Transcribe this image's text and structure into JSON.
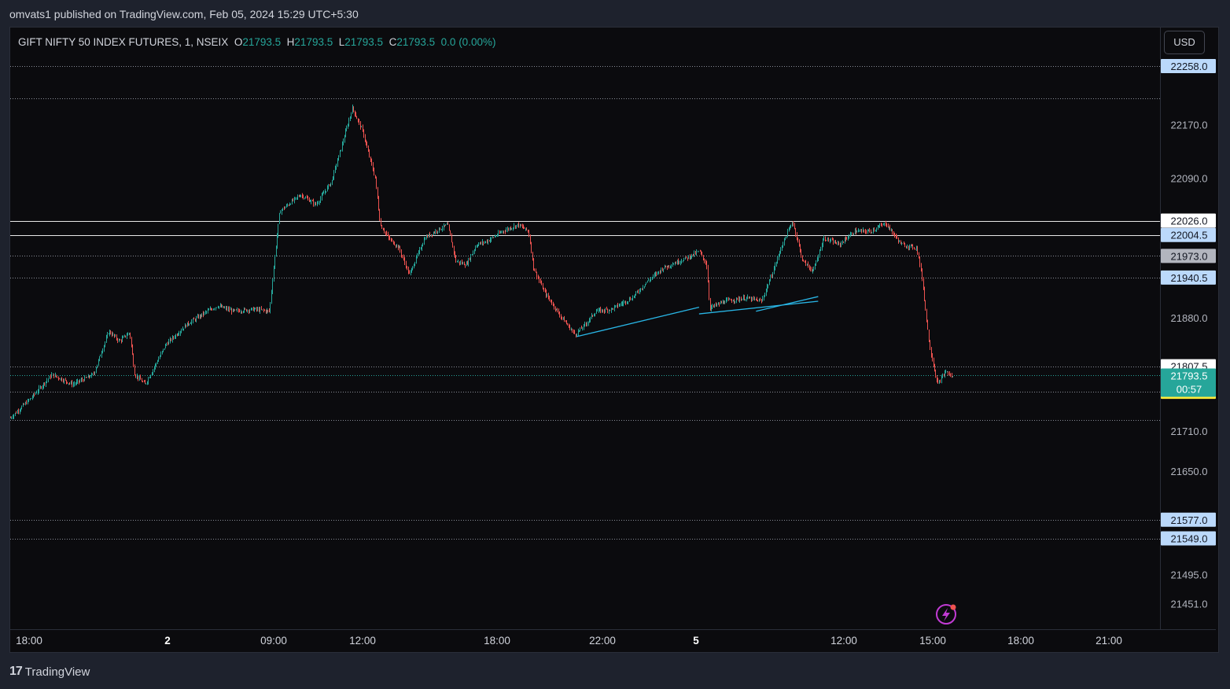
{
  "publish_line": "omvats1 published on TradingView.com, Feb 05, 2024 15:29 UTC+5:30",
  "legend": {
    "symbol": "GIFT NIFTY 50 INDEX FUTURES, 1, NSEIX",
    "o_label": "O",
    "o": "21793.5",
    "h_label": "H",
    "h": "21793.5",
    "l_label": "L",
    "l": "21793.5",
    "c_label": "C",
    "c": "21793.5",
    "change": "0.0 (0.00%)"
  },
  "currency_button": "USD",
  "brand": "TradingView",
  "colors": {
    "up": "#26a69a",
    "down": "#ef5350",
    "accent": "#2962ff",
    "trendline": "#29b6e6"
  },
  "chart_data": {
    "type": "candlestick",
    "y_axis_ticks": [
      "22170.0",
      "22090.0",
      "22026.0",
      "22004.5",
      "21973.0",
      "21940.5",
      "21880.0",
      "21807.5",
      "21769.0",
      "21710.0",
      "21650.0",
      "21577.0",
      "21549.0",
      "21495.0",
      "21451.0"
    ],
    "x_axis_ticks": [
      "18:00",
      "2",
      "09:00",
      "12:00",
      "18:00",
      "22:00",
      "5",
      "12:00",
      "15:00",
      "18:00",
      "21:00"
    ],
    "ylim": [
      21451,
      22258
    ],
    "current_price": {
      "value": "21793.5",
      "countdown": "00:57"
    },
    "price_levels": [
      {
        "value": 22258.0,
        "label": "22258.0",
        "style": "dotted",
        "badge": "blue"
      },
      {
        "value": 22210.0,
        "label": "",
        "style": "dotted",
        "badge": "none"
      },
      {
        "value": 22026.0,
        "label": "22026.0",
        "style": "solid",
        "badge": "white"
      },
      {
        "value": 22004.5,
        "label": "22004.5",
        "style": "solid",
        "badge": "blue"
      },
      {
        "value": 21973.0,
        "label": "21973.0",
        "style": "dotted",
        "badge": "gray"
      },
      {
        "value": 21940.5,
        "label": "21940.5",
        "style": "dotted",
        "badge": "blue"
      },
      {
        "value": 21807.5,
        "label": "21807.5",
        "style": "dotted",
        "badge": "white"
      },
      {
        "value": 21769.0,
        "label": "21769.0",
        "style": "dotted",
        "badge": "yellow"
      },
      {
        "value": 21727.0,
        "label": "",
        "style": "dotted",
        "badge": "none"
      },
      {
        "value": 21577.0,
        "label": "21577.0",
        "style": "dotted",
        "badge": "blue"
      },
      {
        "value": 21549.0,
        "label": "21549.0",
        "style": "dotted",
        "badge": "blue"
      }
    ],
    "price_path": [
      [
        0,
        21730
      ],
      [
        2,
        21760
      ],
      [
        4,
        21795
      ],
      [
        6,
        21780
      ],
      [
        8,
        21795
      ],
      [
        9.5,
        21860
      ],
      [
        10.5,
        21845
      ],
      [
        11.5,
        21858
      ],
      [
        12,
        21795
      ],
      [
        13,
        21780
      ],
      [
        15,
        21840
      ],
      [
        17,
        21870
      ],
      [
        19,
        21890
      ],
      [
        20,
        21898
      ],
      [
        21.5,
        21890
      ],
      [
        23.5,
        21893
      ],
      [
        25,
        21890
      ],
      [
        25.5,
        21970
      ],
      [
        26,
        22040
      ],
      [
        28,
        22065
      ],
      [
        29.5,
        22050
      ],
      [
        31,
        22085
      ],
      [
        32,
        22140
      ],
      [
        33,
        22195
      ],
      [
        34,
        22160
      ],
      [
        35.2,
        22090
      ],
      [
        35.7,
        22020
      ],
      [
        36.5,
        22000
      ],
      [
        37.5,
        21985
      ],
      [
        38.5,
        21945
      ],
      [
        40,
        22000
      ],
      [
        41,
        22010
      ],
      [
        42.2,
        22020
      ],
      [
        43,
        21965
      ],
      [
        44,
        21960
      ],
      [
        45,
        21990
      ],
      [
        46,
        21995
      ],
      [
        47.5,
        22010
      ],
      [
        49,
        22020
      ],
      [
        50,
        22010
      ],
      [
        50.5,
        21955
      ],
      [
        51.5,
        21920
      ],
      [
        53,
        21885
      ],
      [
        54.5,
        21855
      ],
      [
        55.5,
        21870
      ],
      [
        56.5,
        21890
      ],
      [
        58,
        21893
      ],
      [
        60,
        21910
      ],
      [
        61.5,
        21935
      ],
      [
        63,
        21955
      ],
      [
        65,
        21968
      ],
      [
        66.5,
        21980
      ],
      [
        67.2,
        21960
      ],
      [
        67.5,
        21895
      ],
      [
        69,
        21905
      ],
      [
        71,
        21910
      ],
      [
        72.5,
        21905
      ],
      [
        73.5,
        21945
      ],
      [
        74.5,
        21990
      ],
      [
        75.5,
        22025
      ],
      [
        76.5,
        21965
      ],
      [
        77.5,
        21950
      ],
      [
        78.5,
        22000
      ],
      [
        80,
        21990
      ],
      [
        81.5,
        22010
      ],
      [
        83,
        22010
      ],
      [
        84.5,
        22022
      ],
      [
        86,
        21990
      ],
      [
        87.5,
        21985
      ],
      [
        88,
        21940
      ],
      [
        88.7,
        21840
      ],
      [
        89.5,
        21780
      ],
      [
        90.3,
        21800
      ],
      [
        91,
        21790
      ]
    ],
    "x_range": [
      0,
      111
    ],
    "trendlines": [
      {
        "from": [
          54.7,
          21852
        ],
        "to": [
          66.5,
          21896
        ]
      },
      {
        "from": [
          66.5,
          21886
        ],
        "to": [
          78,
          21905
        ]
      },
      {
        "from": [
          72,
          21890
        ],
        "to": [
          78,
          21912
        ]
      }
    ]
  }
}
